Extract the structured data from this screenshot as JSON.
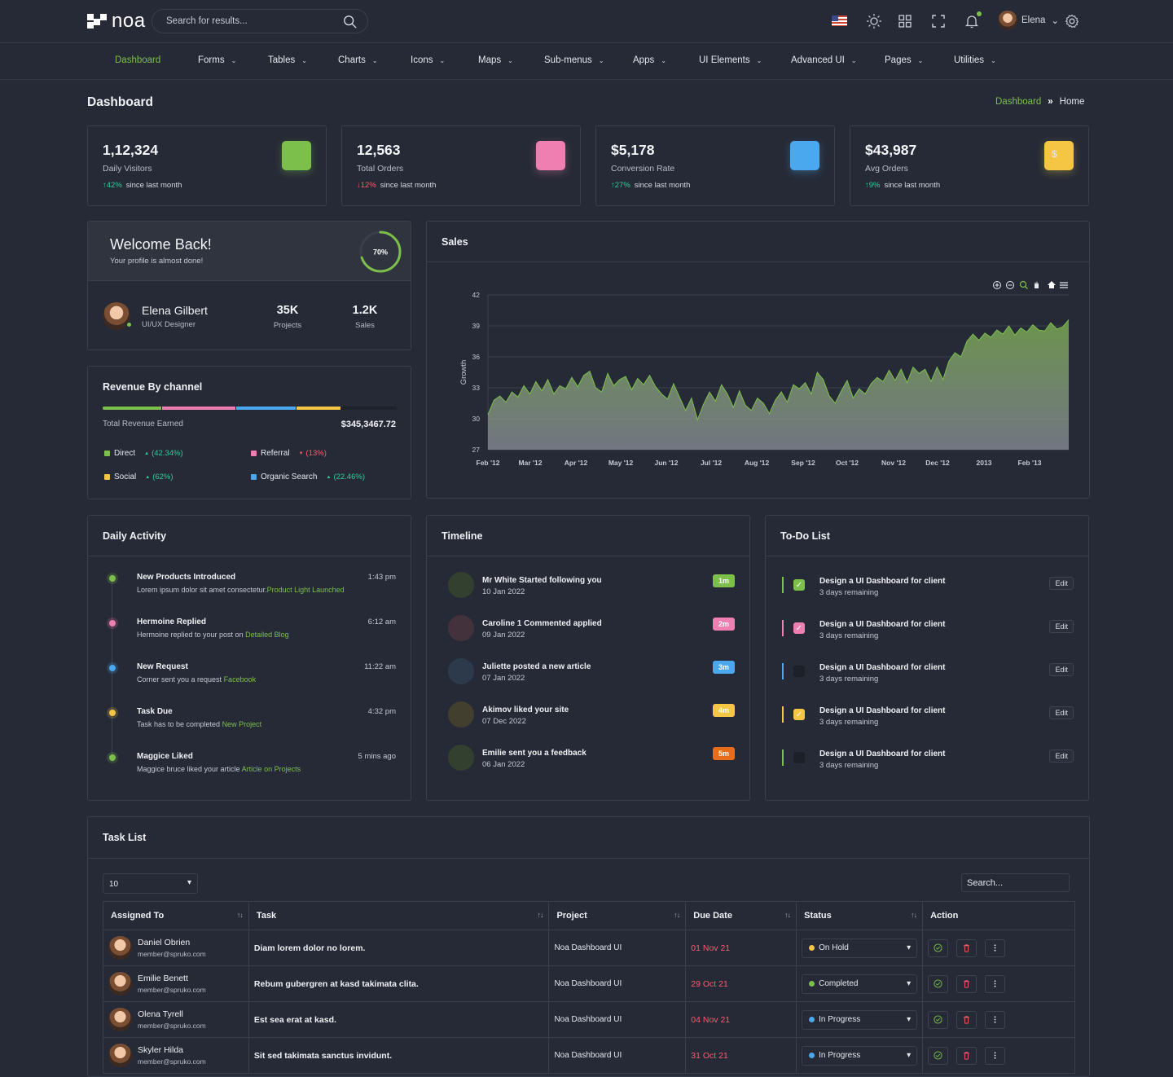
{
  "app": {
    "name": "noa"
  },
  "search": {
    "placeholder": "Search for results..."
  },
  "user": {
    "name": "Elena"
  },
  "nav": [
    {
      "label": "Dashboard",
      "icon": "home-icon"
    },
    {
      "label": "Forms",
      "icon": "pencil-icon"
    },
    {
      "label": "Tables",
      "icon": "tables-icon"
    },
    {
      "label": "Charts",
      "icon": "chart-icon"
    },
    {
      "label": "Icons",
      "icon": "globe-icon"
    },
    {
      "label": "Maps",
      "icon": "map-pin-icon"
    },
    {
      "label": "Sub-menus",
      "icon": "share-icon"
    },
    {
      "label": "Apps",
      "icon": "grid-icon"
    },
    {
      "label": "UI Elements",
      "icon": "layers-circle-icon"
    },
    {
      "label": "Advanced UI",
      "icon": "gear-icon"
    },
    {
      "label": "Pages",
      "icon": "file-icon"
    },
    {
      "label": "Utilities",
      "icon": "stack-icon"
    }
  ],
  "page": {
    "title": "Dashboard",
    "breadcrumb": {
      "link": "Dashboard",
      "sep": "»",
      "current": "Home"
    }
  },
  "stats": [
    {
      "value": "1,12,324",
      "label": "Daily Visitors",
      "arrow": "↑",
      "pct": "42%",
      "since": "since last month",
      "trend": "up",
      "color": "#7cc04b",
      "icon": "eye-icon"
    },
    {
      "value": "12,563",
      "label": "Total Orders",
      "arrow": "↓",
      "pct": "12%",
      "since": "since last month",
      "trend": "down",
      "color": "#ef7fb0",
      "icon": "bag-icon"
    },
    {
      "value": "$5,178",
      "label": "Conversion Rate",
      "arrow": "↑",
      "pct": "27%",
      "since": "since last month",
      "trend": "up",
      "color": "#4aa8ee",
      "icon": "bar-chart-icon"
    },
    {
      "value": "$43,987",
      "label": "Avg Orders",
      "arrow": "↑",
      "pct": "9%",
      "since": "since last month",
      "trend": "up",
      "color": "#f4c644",
      "icon": "dollar-icon"
    }
  ],
  "welcome": {
    "title": "Welcome Back!",
    "subtitle": "Your profile is almost done!",
    "progress": 70,
    "progress_label": "70%"
  },
  "profile": {
    "name": "Elena Gilbert",
    "role": "UI/UX Designer",
    "projects": "35K",
    "projects_label": "Projects",
    "sales": "1.2K",
    "sales_label": "Sales"
  },
  "revenue": {
    "title": "Revenue By channel",
    "total_label": "Total Revenue Earned",
    "total": "$345,3467.72",
    "segments": [
      {
        "color": "#7cc04b",
        "share": 0.2
      },
      {
        "color": "#ef7fb0",
        "share": 0.25
      },
      {
        "color": "#4aa8ee",
        "share": 0.2
      },
      {
        "color": "#f4c644",
        "share": 0.15
      }
    ],
    "legend": [
      {
        "label": "Direct",
        "arrow": "▲",
        "pct": "(42.34%)",
        "color": "#7cc04b",
        "trend": "up"
      },
      {
        "label": "Referral",
        "arrow": "▼",
        "pct": "(13%)",
        "color": "#ef7fb0",
        "trend": "down"
      },
      {
        "label": "Social",
        "arrow": "▲",
        "pct": "(62%)",
        "color": "#f4c644",
        "trend": "up"
      },
      {
        "label": "Organic Search",
        "arrow": "▲",
        "pct": "(22.46%)",
        "color": "#4aa8ee",
        "trend": "up"
      }
    ]
  },
  "sales": {
    "title": "Sales"
  },
  "chart_data": {
    "type": "area",
    "title": "Sales",
    "ylabel": "Growth",
    "xlabel": "",
    "ylim": [
      27,
      42
    ],
    "yticks": [
      27,
      30,
      33,
      36,
      39,
      42
    ],
    "x_ticks": [
      "Feb '12",
      "Mar '12",
      "Apr '12",
      "May '12",
      "Jun '12",
      "Jul '12",
      "Aug '12",
      "Sep '12",
      "Oct '12",
      "Nov '12",
      "Dec '12",
      "2013",
      "Feb '13"
    ],
    "grid": true,
    "series": [
      {
        "values": [
          30.4,
          31.8,
          32.2,
          31.6,
          32.6,
          32.1,
          33.2,
          32.4,
          33.6,
          32.7,
          33.8,
          32.4,
          33.2,
          32.9,
          34.0,
          33.1,
          34.2,
          34.6,
          33.0,
          32.6,
          34.4,
          33.2,
          33.8,
          34.1,
          32.8,
          33.9,
          33.3,
          34.2,
          33.1,
          32.4,
          31.9,
          33.4,
          32.1,
          30.8,
          32.0,
          29.9,
          31.4,
          32.6,
          31.7,
          33.3,
          32.4,
          31.1,
          32.7,
          31.3,
          30.8,
          32.0,
          31.5,
          30.5,
          31.8,
          32.6,
          31.6,
          33.3,
          32.9,
          33.5,
          32.4,
          34.5,
          33.8,
          32.2,
          31.5,
          32.7,
          33.7,
          32.0,
          32.9,
          32.4,
          33.4,
          34.0,
          33.6,
          34.7,
          33.7,
          34.8,
          33.5,
          35.0,
          34.4,
          34.8,
          33.6,
          35.0,
          33.8,
          35.6,
          36.4,
          36.0,
          37.5,
          38.2,
          37.6,
          38.3,
          37.9,
          38.6,
          38.2,
          39.0,
          38.1,
          38.8,
          38.4,
          39.1,
          38.6,
          38.5,
          39.3,
          38.7,
          38.9,
          39.6
        ]
      }
    ]
  },
  "activity": {
    "title": "Daily Activity",
    "items": [
      {
        "title": "New Products Introduced",
        "text": "Lorem ipsum dolor sit amet consectetur.",
        "link": "Product Light Launched",
        "time": "1:43 pm",
        "color": "#7cc04b"
      },
      {
        "title": "Hermoine Replied",
        "text": "Hermoine replied to your post on ",
        "link": "Detailed Blog",
        "time": "6:12 am",
        "color": "#ef7fb0"
      },
      {
        "title": "New Request",
        "text": "Corner sent you a request ",
        "link": "Facebook",
        "time": "11:22 am",
        "color": "#4aa8ee"
      },
      {
        "title": "Task Due",
        "text": "Task has to be completed ",
        "link": "New Project",
        "time": "4:32 pm",
        "color": "#f4c644"
      },
      {
        "title": "Maggice Liked",
        "text": "Maggice bruce liked your article ",
        "link": "Article on Projects",
        "time": "5 mins ago",
        "color": "#7cc04b"
      }
    ]
  },
  "timeline": {
    "title": "Timeline",
    "items": [
      {
        "title": "Mr White Started following you",
        "date": "10 Jan 2022",
        "badge": "1m",
        "color": "#7cc04b",
        "bg": "#33402f",
        "icon": "user-plus-icon"
      },
      {
        "title": "Caroline 1 Commented applied",
        "date": "09 Jan 2022",
        "badge": "2m",
        "color": "#ef7fb0",
        "bg": "#43323c",
        "icon": "comment-icon"
      },
      {
        "title": "Juliette posted a new article",
        "date": "07 Jan 2022",
        "badge": "3m",
        "color": "#4aa8ee",
        "bg": "#2c3a4b",
        "icon": "clipboard-icon"
      },
      {
        "title": "Akimov liked your site",
        "date": "07 Dec 2022",
        "badge": "4m",
        "color": "#f4c644",
        "bg": "#433f2e",
        "icon": "thumbs-up-icon"
      },
      {
        "title": "Emilie sent you a feedback",
        "date": "06 Jan 2022",
        "badge": "5m",
        "color": "#e86c1a",
        "bg": "#33402f",
        "icon": "tablet-icon",
        "icon_color": "#7cc04b"
      }
    ]
  },
  "todo": {
    "title": "To-Do List",
    "items": [
      {
        "title": "Design a UI Dashboard for client",
        "sub": "3 days remaining",
        "checked": true,
        "color": "#7cc04b",
        "edit": "Edit"
      },
      {
        "title": "Design a UI Dashboard for client",
        "sub": "3 days remaining",
        "checked": true,
        "color": "#ef7fb0",
        "edit": "Edit"
      },
      {
        "title": "Design a UI Dashboard for client",
        "sub": "3 days remaining",
        "checked": false,
        "color": "#4aa8ee",
        "edit": "Edit"
      },
      {
        "title": "Design a UI Dashboard for client",
        "sub": "3 days remaining",
        "checked": true,
        "color": "#f4c644",
        "edit": "Edit"
      },
      {
        "title": "Design a UI Dashboard for client",
        "sub": "3 days remaining",
        "checked": false,
        "color": "#7cc04b",
        "edit": "Edit"
      }
    ]
  },
  "tasks": {
    "title": "Task List",
    "page_size": "10",
    "search_placeholder": "Search...",
    "columns": [
      "Assigned To",
      "Task",
      "Project",
      "Due Date",
      "Status",
      "Action"
    ],
    "rows": [
      {
        "name": "Daniel Obrien",
        "email": "member@spruko.com",
        "task": "Diam lorem dolor no lorem.",
        "project": "Noa Dashboard UI",
        "due": "01 Nov 21",
        "status": "On Hold",
        "status_color": "#f4c644"
      },
      {
        "name": "Emilie Benett",
        "email": "member@spruko.com",
        "task": "Rebum gubergren at kasd takimata clita.",
        "project": "Noa Dashboard UI",
        "due": "29 Oct 21",
        "status": "Completed",
        "status_color": "#7cc04b"
      },
      {
        "name": "Olena Tyrell",
        "email": "member@spruko.com",
        "task": "Est sea erat at kasd.",
        "project": "Noa Dashboard UI",
        "due": "04 Nov 21",
        "status": "In Progress",
        "status_color": "#4aa8ee"
      },
      {
        "name": "Skyler Hilda",
        "email": "member@spruko.com",
        "task": "Sit sed takimata sanctus invidunt.",
        "project": "Noa Dashboard UI",
        "due": "31 Oct 21",
        "status": "In Progress",
        "status_color": "#4aa8ee"
      }
    ]
  }
}
